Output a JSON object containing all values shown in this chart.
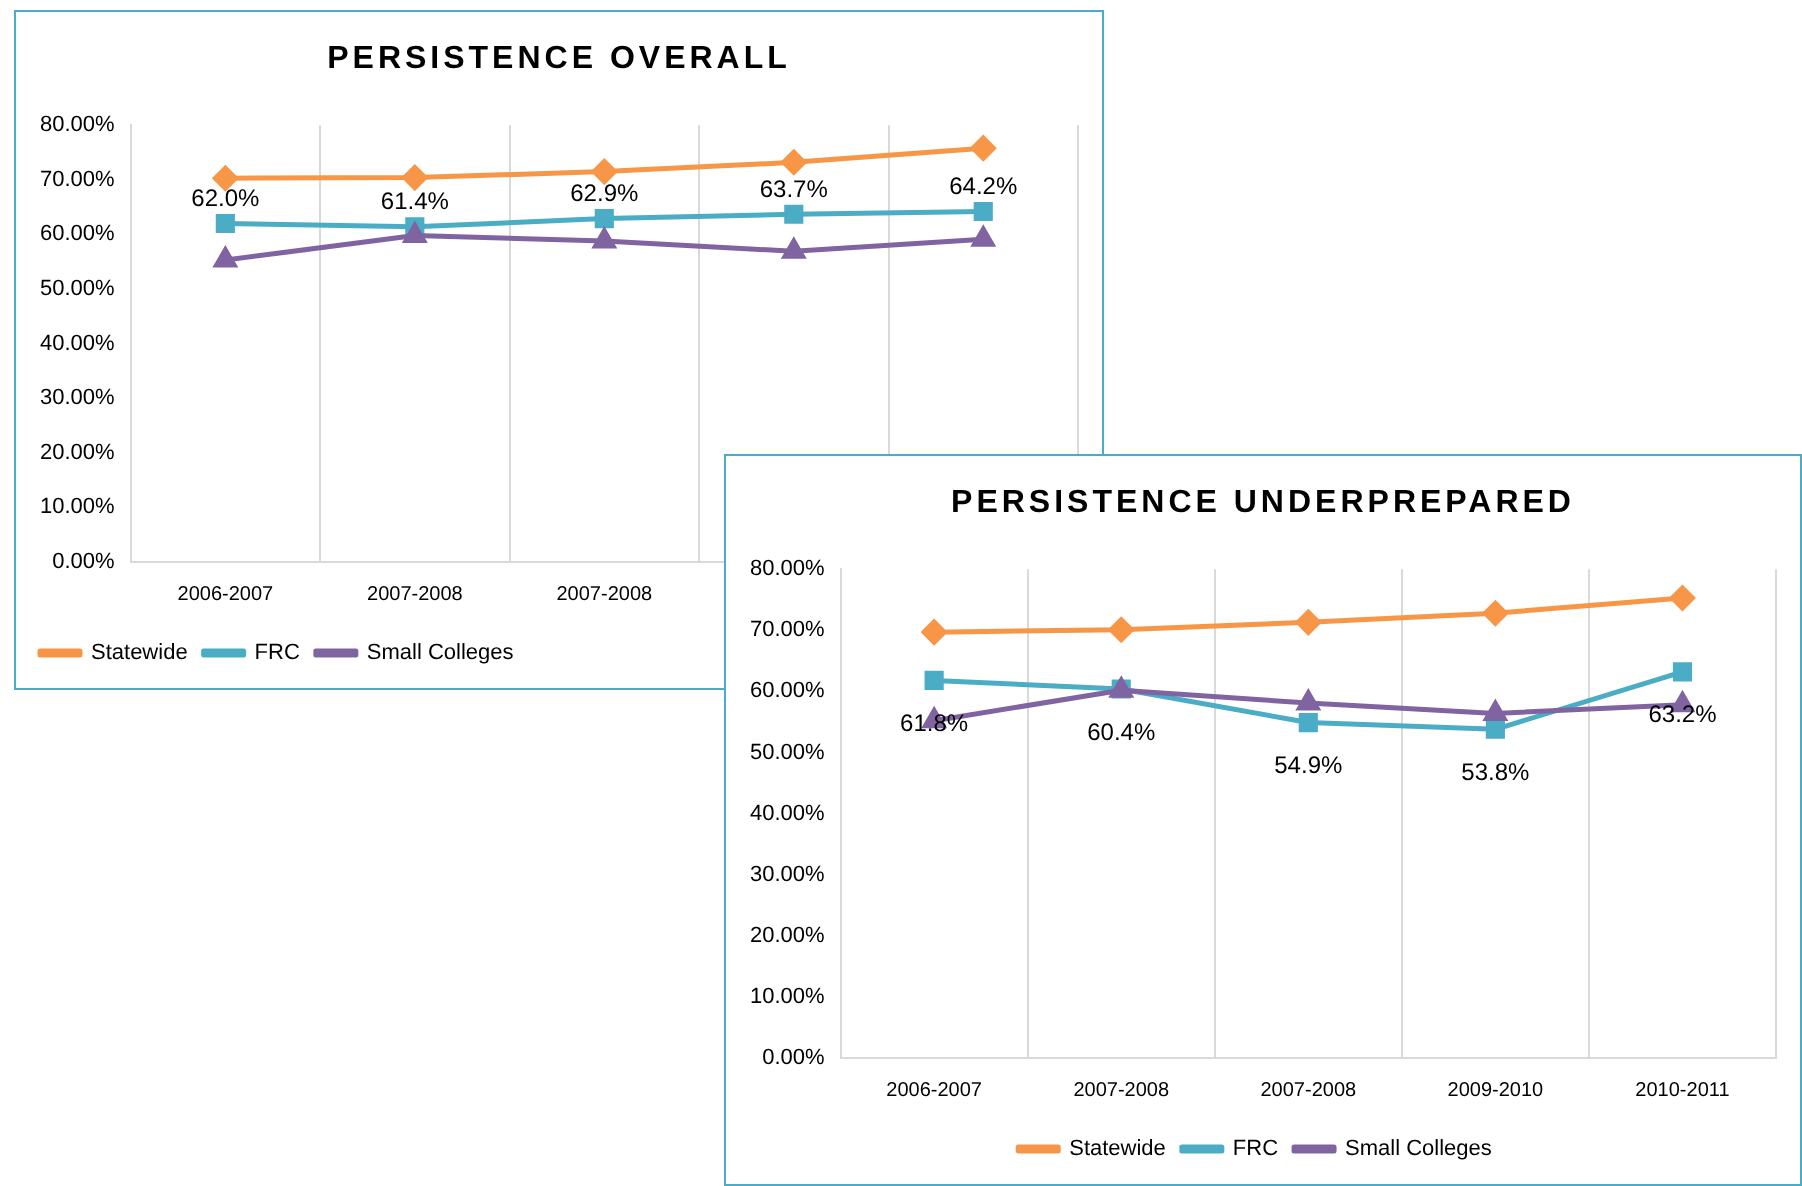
{
  "chart_data": [
    {
      "type": "line",
      "title": "PERSISTENCE OVERALL",
      "categories": [
        "2006-2007",
        "2007-2008",
        "2007-2008",
        null,
        null
      ],
      "ylim": [
        0,
        80
      ],
      "yticks": [
        {
          "value": 0,
          "label": "0.00%"
        },
        {
          "value": 10,
          "label": "10.00%"
        },
        {
          "value": 20,
          "label": "20.00%"
        },
        {
          "value": 30,
          "label": "30.00%"
        },
        {
          "value": 40,
          "label": "40.00%"
        },
        {
          "value": 50,
          "label": "50.00%"
        },
        {
          "value": 60,
          "label": "60.00%"
        },
        {
          "value": 70,
          "label": "70.00%"
        },
        {
          "value": 80,
          "label": "80.00%"
        }
      ],
      "grid": "x",
      "legend": "bottom",
      "series": [
        {
          "name": "Statewide",
          "color": "#f79646",
          "marker": "diamond",
          "values": [
            70.3,
            70.4,
            71.5,
            73.2,
            75.8
          ]
        },
        {
          "name": "FRC",
          "color": "#4bacc6",
          "marker": "square",
          "values": [
            62.0,
            61.4,
            62.9,
            63.7,
            64.2
          ],
          "value_labels": [
            "62.0%",
            "61.4%",
            "62.9%",
            "63.7%",
            "64.2%"
          ]
        },
        {
          "name": "Small Colleges",
          "color": "#8064a2",
          "marker": "triangle",
          "values": [
            55.3,
            59.8,
            58.8,
            56.9,
            59.1
          ]
        }
      ]
    },
    {
      "type": "line",
      "title": "PERSISTENCE UNDERPREPARED",
      "categories": [
        "2006-2007",
        "2007-2008",
        "2007-2008",
        "2009-2010",
        "2010-2011"
      ],
      "ylim": [
        0,
        80
      ],
      "yticks": [
        {
          "value": 0,
          "label": "0.00%"
        },
        {
          "value": 10,
          "label": "10.00%"
        },
        {
          "value": 20,
          "label": "20.00%"
        },
        {
          "value": 30,
          "label": "30.00%"
        },
        {
          "value": 40,
          "label": "40.00%"
        },
        {
          "value": 50,
          "label": "50.00%"
        },
        {
          "value": 60,
          "label": "60.00%"
        },
        {
          "value": 70,
          "label": "70.00%"
        },
        {
          "value": 80,
          "label": "80.00%"
        }
      ],
      "grid": "x",
      "legend": "bottom",
      "series": [
        {
          "name": "Statewide",
          "color": "#f79646",
          "marker": "diamond",
          "values": [
            69.7,
            70.1,
            71.3,
            72.8,
            75.3
          ]
        },
        {
          "name": "FRC",
          "color": "#4bacc6",
          "marker": "square",
          "values": [
            61.8,
            60.4,
            54.9,
            53.8,
            63.2
          ],
          "value_labels": [
            "61.8%",
            "60.4%",
            "54.9%",
            "53.8%",
            "63.2%"
          ]
        },
        {
          "name": "Small Colleges",
          "color": "#8064a2",
          "marker": "triangle",
          "values": [
            55.2,
            60.2,
            58.1,
            56.4,
            57.8
          ]
        }
      ]
    }
  ]
}
